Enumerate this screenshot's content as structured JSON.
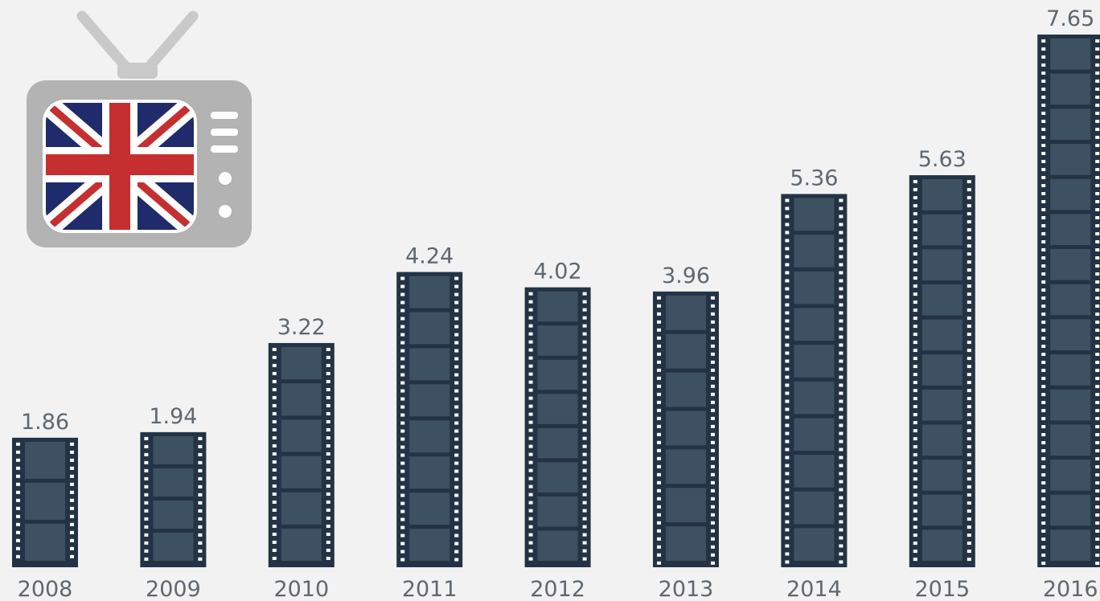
{
  "chart_data": {
    "type": "bar",
    "categories": [
      "2008",
      "2009",
      "2010",
      "2011",
      "2012",
      "2013",
      "2014",
      "2015",
      "2016"
    ],
    "values": [
      1.86,
      1.94,
      3.22,
      4.24,
      4.02,
      3.96,
      5.36,
      5.63,
      7.65
    ],
    "value_labels": [
      "1.86",
      "1.94",
      "3.22",
      "4.24",
      "4.02",
      "3.96",
      "5.36",
      "5.63",
      "7.65"
    ],
    "ylim": [
      0,
      7.65
    ],
    "grid": false,
    "legend": "none",
    "colors": {
      "film": "#233345",
      "frame": "#3d5163",
      "perforation": "#ffffff",
      "label": "#5f6770",
      "background": "#f2f2f2",
      "tv_body": "#b3b3b3",
      "flag_blue": "#1f2b6b",
      "flag_red": "#c62f2f"
    }
  },
  "decoration": {
    "tv_icon": "tv-with-union-jack-icon"
  }
}
